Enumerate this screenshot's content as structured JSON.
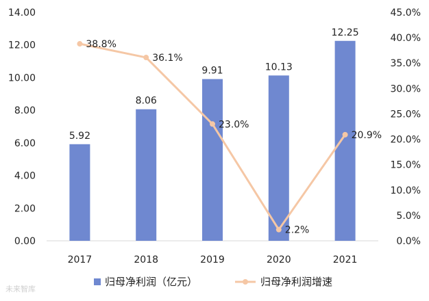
{
  "watermark": "未来智库",
  "chart_data": {
    "type": "bar",
    "categories": [
      "2017",
      "2018",
      "2019",
      "2020",
      "2021"
    ],
    "series": [
      {
        "name": "归母净利润（亿元）",
        "type": "bar",
        "axis": "left",
        "values": [
          5.92,
          8.06,
          9.91,
          10.13,
          12.25
        ],
        "labels": [
          "5.92",
          "8.06",
          "9.91",
          "10.13",
          "12.25"
        ],
        "color": "#6f88d0"
      },
      {
        "name": "归母净利润增速",
        "type": "line",
        "axis": "right",
        "values": [
          38.8,
          36.1,
          23.0,
          2.2,
          20.9
        ],
        "labels": [
          "38.8%",
          "36.1%",
          "23.0%",
          "2.2%",
          "20.9%"
        ],
        "color": "#f5c7a5"
      }
    ],
    "y_left": {
      "ylim": [
        0,
        14
      ],
      "ticks": [
        "0.00",
        "2.00",
        "4.00",
        "6.00",
        "8.00",
        "10.00",
        "12.00",
        "14.00"
      ]
    },
    "y_right": {
      "ylim": [
        0,
        45
      ],
      "ticks": [
        "0.0%",
        "5.0%",
        "10.0%",
        "15.0%",
        "20.0%",
        "25.0%",
        "30.0%",
        "35.0%",
        "40.0%",
        "45.0%"
      ]
    },
    "grid": false,
    "legend_position": "bottom"
  }
}
